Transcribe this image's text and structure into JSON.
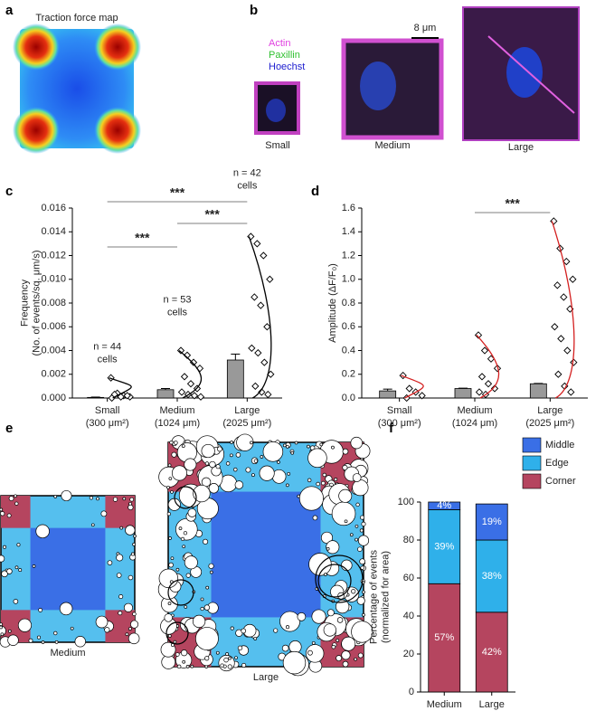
{
  "panels": {
    "labels": [
      "a",
      "b",
      "c",
      "d",
      "e",
      "f"
    ],
    "a": {
      "title": "Traction force map"
    },
    "b": {
      "legend": [
        "Actin",
        "Paxillin",
        "Hoechst"
      ],
      "scale_bar": "8 μm",
      "captions": [
        "Small",
        "Medium",
        "Large"
      ]
    },
    "e": {
      "captions": [
        "Medium",
        "Large"
      ]
    }
  },
  "chart_data": [
    {
      "type": "bar",
      "y_label": [
        "Frequency",
        "(No. of events/sq. μm/s)"
      ],
      "categories": [
        "Small",
        "Medium",
        "Large"
      ],
      "category_notes": [
        "(300 μm²)",
        "(1024 μm)",
        "(2025 μm²)"
      ],
      "values": [
        5e-05,
        0.0007,
        0.0032
      ],
      "errors": [
        3e-05,
        0.0001,
        0.0005
      ],
      "color": "#999999",
      "points": [
        [
          0.0017,
          0.0004,
          0.0002,
          0.0001,
          0.0003,
          0.0001,
          0.0002,
          0
        ],
        [
          0.004,
          0.0036,
          0.003,
          0.0025,
          0.0018,
          0.0012,
          0.0008,
          0.0005,
          0.0003,
          0.0002,
          0.0001
        ],
        [
          0.0136,
          0.013,
          0.012,
          0.01,
          0.0085,
          0.0078,
          0.006,
          0.0042,
          0.0038,
          0.003,
          0.002,
          0.001,
          0.0005,
          0.0003
        ]
      ],
      "n_labels": [
        [
          "n = 44",
          "cells"
        ],
        [
          "n = 53",
          "cells"
        ],
        [
          "n = 42",
          "cells"
        ]
      ],
      "significance": [
        "***",
        "***",
        "***"
      ],
      "curve_color": "#000000",
      "ylim": [
        0,
        0.016
      ],
      "yticks": [
        {
          "value": 0,
          "label": "0.000"
        },
        {
          "value": 0.002,
          "label": "0.002"
        },
        {
          "value": 0.004,
          "label": "0.004"
        },
        {
          "value": 0.006,
          "label": "0.006"
        },
        {
          "value": 0.008,
          "label": "0.008"
        },
        {
          "value": 0.01,
          "label": "0.010"
        },
        {
          "value": 0.012,
          "label": "0.012"
        },
        {
          "value": 0.014,
          "label": "0.014"
        },
        {
          "value": 0.016,
          "label": "0.016"
        }
      ]
    },
    {
      "type": "bar",
      "y_label": [
        "Amplitude (ΔF/F₀)"
      ],
      "categories": [
        "Small",
        "Medium",
        "Large"
      ],
      "category_notes": [
        "(300 μm²)",
        "(1024 μm)",
        "(2025 μm²)"
      ],
      "values": [
        0.06,
        0.08,
        0.12
      ],
      "errors": [
        0.015,
        0.003,
        0.003
      ],
      "color": "#999999",
      "points": [
        [
          0.19,
          0.08,
          0.05,
          0.02,
          0
        ],
        [
          0.53,
          0.4,
          0.33,
          0.25,
          0.18,
          0.12,
          0.08,
          0.05,
          0.03
        ],
        [
          1.49,
          1.26,
          1.15,
          1,
          0.95,
          0.85,
          0.75,
          0.6,
          0.5,
          0.4,
          0.3,
          0.2,
          0.1,
          0.05
        ]
      ],
      "significance": [
        "***"
      ],
      "curve_color": "#d42020",
      "ylim": [
        0,
        1.6
      ],
      "yticks": [
        {
          "value": 0,
          "label": "0.0"
        },
        {
          "value": 0.2,
          "label": "0.2"
        },
        {
          "value": 0.4,
          "label": "0.4"
        },
        {
          "value": 0.6,
          "label": "0.6"
        },
        {
          "value": 0.8,
          "label": "0.8"
        },
        {
          "value": 1,
          "label": "1.0"
        },
        {
          "value": 1.2,
          "label": "1.2"
        },
        {
          "value": 1.4,
          "label": "1.4"
        },
        {
          "value": 1.6,
          "label": "1.6"
        }
      ]
    },
    {
      "type": "stacked_bar",
      "y_label": [
        "Percentage of events",
        "(normalized for area)"
      ],
      "categories": [
        "Medium",
        "Large"
      ],
      "series": [
        {
          "name": "Corner",
          "color": "#b5455f",
          "values": [
            57,
            42
          ],
          "value_labels": [
            "57%",
            "42%"
          ]
        },
        {
          "name": "Edge",
          "color": "#2fb0ea",
          "values": [
            39,
            38
          ],
          "value_labels": [
            "39%",
            "38%"
          ]
        },
        {
          "name": "Middle",
          "color": "#3a6fe6",
          "values": [
            4,
            19
          ],
          "value_labels": [
            "4%",
            "19%"
          ]
        }
      ],
      "ylim": [
        0,
        100
      ],
      "yticks": [
        0,
        20,
        40,
        60,
        80,
        100
      ]
    }
  ]
}
